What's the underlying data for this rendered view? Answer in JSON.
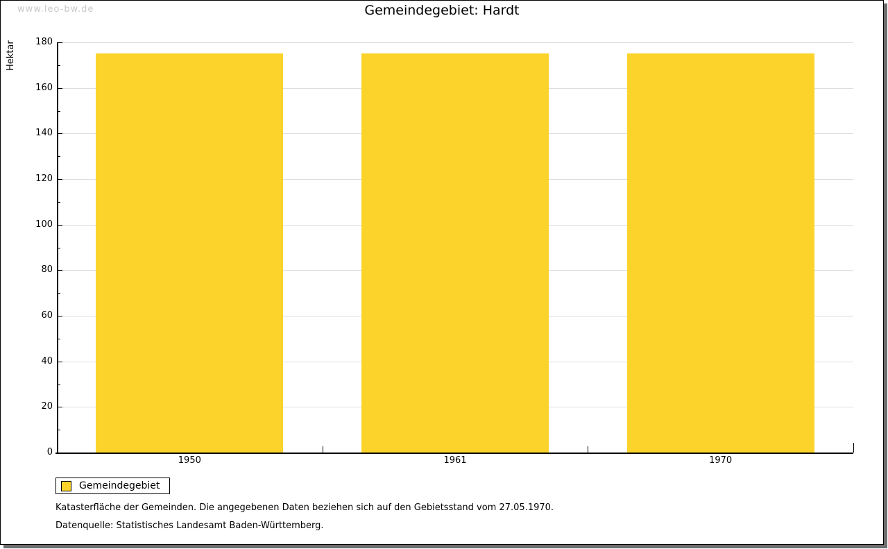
{
  "watermark": "www.leo-bw.de",
  "chart_data": {
    "type": "bar",
    "title": "Gemeindegebiet: Hardt",
    "categories": [
      "1950",
      "1961",
      "1970"
    ],
    "series": [
      {
        "name": "Gemeindegebiet",
        "values": [
          175,
          175,
          175
        ]
      }
    ],
    "xlabel": "",
    "ylabel": "Hektar",
    "ylim": [
      0,
      180
    ],
    "y_major_step": 20,
    "y_minor_step": 10,
    "grid": true,
    "legend_position": "bottom-left",
    "bar_color": "#fcd32b"
  },
  "colors": {
    "bar": "#fcd32b",
    "gridline": "#dddddd",
    "axis": "#000000",
    "watermark": "#c9c9c9",
    "frame_shadow": "#6e6e6e"
  },
  "footnotes": [
    "Katasterfläche der Gemeinden. Die angegebenen Daten beziehen sich auf den Gebietsstand vom 27.05.1970.",
    "Datenquelle: Statistisches Landesamt Baden-Württemberg."
  ]
}
